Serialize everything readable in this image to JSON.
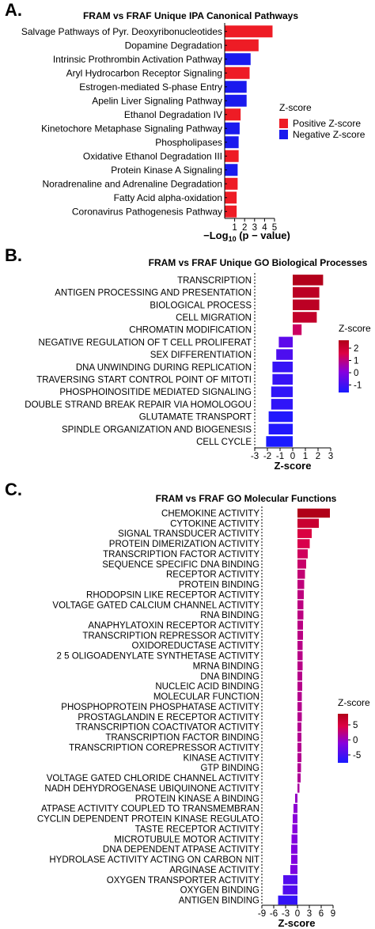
{
  "panels": {
    "a": {
      "letter": "A.",
      "title": "FRAM vs FRAF Unique IPA Canonical Pathways",
      "xlabel_prefix": "−Log",
      "xlabel_sub": "10",
      "xlabel_suffix": " (p − value)",
      "legend_title": "Z-score",
      "legend_items": [
        "Positive Z-score",
        "Negative Z-score"
      ]
    },
    "b": {
      "letter": "B.",
      "title": "FRAM vs FRAF Unique GO Biological Processes",
      "xlabel": "Z-score",
      "legend_title": "Z-score"
    },
    "c": {
      "letter": "C.",
      "title": "FRAM vs FRAF GO Molecular Functions",
      "xlabel": "Z-score",
      "legend_title": "Z-score"
    }
  },
  "colors": {
    "positive": "#ee1c25",
    "negative": "#1a1aee",
    "gradient": [
      "#1a1aff",
      "#8800dd",
      "#dd0044",
      "#b00018"
    ]
  },
  "chart_data": [
    {
      "type": "bar",
      "orientation": "horizontal",
      "title": "FRAM vs FRAF Unique IPA Canonical Pathways",
      "xlabel": "−Log10 (p − value)",
      "xlim": [
        0,
        5
      ],
      "xticks": [
        "1",
        "2",
        "3",
        "4",
        "5"
      ],
      "categories": [
        "Salvage Pathways of Pyr. Deoxyribonucleotides",
        "Dopamine Degradation",
        "Intrinsic Prothrombin Activation Pathway",
        "Aryl Hydrocarbon Receptor Signaling",
        "Estrogen-mediated S-phase Entry",
        "Apelin Liver Signaling Pathway",
        "Ethanol Degradation IV",
        "Kinetochore Metaphase Signaling Pathway",
        "Phospholipases",
        "Oxidative Ethanol Degradation III",
        "Protein Kinase A Signaling",
        "Noradrenaline and Adrenaline Degradation",
        "Fatty Acid alpha-oxidation",
        "Coronavirus Pathogenesis Pathway"
      ],
      "values": [
        4.8,
        3.4,
        2.6,
        2.5,
        2.2,
        2.2,
        1.6,
        1.5,
        1.4,
        1.4,
        1.3,
        1.3,
        1.2,
        1.2
      ],
      "zscore_sign": [
        "positive",
        "positive",
        "negative",
        "positive",
        "negative",
        "negative",
        "positive",
        "negative",
        "negative",
        "positive",
        "negative",
        "positive",
        "positive",
        "positive"
      ],
      "legend": [
        "Positive Z-score",
        "Negative Z-score"
      ],
      "legend_title": "Z-score",
      "legend_position": "right"
    },
    {
      "type": "bar",
      "orientation": "horizontal",
      "title": "FRAM vs FRAF Unique GO Biological Processes",
      "xlabel": "Z-score",
      "xlim": [
        -3,
        3
      ],
      "xticks": [
        "-3",
        "-2",
        "-1",
        "0",
        "1",
        "2",
        "3"
      ],
      "categories": [
        "TRANSCRIPTION",
        "ANTIGEN PROCESSING AND PRESENTATION",
        "BIOLOGICAL PROCESS",
        "CELL MIGRATION",
        "CHROMATIN MODIFICATION",
        "NEGATIVE REGULATION OF T CELL PROLIFERAT",
        "SEX DIFFERENTIATION",
        "DNA UNWINDING DURING REPLICATION",
        "TRAVERSING START CONTROL POINT OF MITOTI",
        "PHOSPHOINOSITIDE MEDIATED SIGNALING",
        "DOUBLE STRAND BREAK REPAIR VIA HOMOLOGOU",
        "GLUTAMATE TRANSPORT",
        "SPINDLE ORGANIZATION AND BIOGENESIS",
        "CELL CYCLE"
      ],
      "values": [
        2.4,
        2.1,
        2.1,
        1.9,
        0.7,
        -1.1,
        -1.3,
        -1.6,
        -1.6,
        -1.7,
        -1.7,
        -1.9,
        -1.9,
        -2.1
      ],
      "colorbar": {
        "title": "Z-score",
        "ticks": [
          "2",
          "1",
          "0",
          "-1"
        ],
        "range": [
          -2,
          2.5
        ]
      },
      "legend_position": "right"
    },
    {
      "type": "bar",
      "orientation": "horizontal",
      "title": "FRAM vs FRAF GO Molecular Functions",
      "xlabel": "Z-score",
      "xlim": [
        -9,
        9
      ],
      "xticks": [
        "-9",
        "-6",
        "-3",
        "0",
        "3",
        "6",
        "9"
      ],
      "categories": [
        "CHEMOKINE ACTIVITY",
        "CYTOKINE ACTIVITY",
        "SIGNAL TRANSDUCER ACTIVITY",
        "PROTEIN DIMERIZATION ACTIVITY",
        "TRANSCRIPTION FACTOR ACTIVITY",
        "SEQUENCE SPECIFIC DNA BINDING",
        "RECEPTOR ACTIVITY",
        "PROTEIN BINDING",
        "RHODOPSIN LIKE RECEPTOR ACTIVITY",
        "VOLTAGE GATED CALCIUM CHANNEL ACTIVITY",
        "RNA BINDING",
        "ANAPHYLATOXIN RECEPTOR ACTIVITY",
        "TRANSCRIPTION REPRESSOR ACTIVITY",
        "OXIDOREDUCTASE ACTIVITY",
        "2 5 OLIGOADENYLATE SYNTHETASE ACTIVITY",
        "MRNA BINDING",
        "DNA BINDING",
        "NUCLEIC ACID BINDING",
        "MOLECULAR FUNCTION",
        "PHOSPHOPROTEIN PHOSPHATASE ACTIVITY",
        "PROSTAGLANDIN E RECEPTOR ACTIVITY",
        "TRANSCRIPTION COACTIVATOR ACTIVITY",
        "TRANSCRIPTION FACTOR BINDING",
        "TRANSCRIPTION COREPRESSOR ACTIVITY",
        "KINASE ACTIVITY",
        "GTP BINDING",
        "VOLTAGE GATED CHLORIDE CHANNEL ACTIVITY",
        "NADH DEHYDROGENASE  UBIQUINONE  ACTIVITY",
        "PROTEIN KINASE A BINDING",
        "ATPASE ACTIVITY COUPLED TO TRANSMEMBRAN",
        "CYCLIN DEPENDENT PROTEIN KINASE REGULATO",
        "TASTE RECEPTOR ACTIVITY",
        "MICROTUBULE MOTOR ACTIVITY",
        "DNA DEPENDENT ATPASE ACTIVITY",
        "HYDROLASE ACTIVITY ACTING ON CARBON NIT",
        "ARGINASE ACTIVITY",
        "OXYGEN TRANSPORTER ACTIVITY",
        "OXYGEN BINDING",
        "ANTIGEN BINDING"
      ],
      "values": [
        8.2,
        5.4,
        3.6,
        3.1,
        2.6,
        2.2,
        1.9,
        1.7,
        1.6,
        1.5,
        1.5,
        1.4,
        1.4,
        1.3,
        1.3,
        1.3,
        1.2,
        1.2,
        1.1,
        1.1,
        1.1,
        1.0,
        1.0,
        1.0,
        1.0,
        0.9,
        0.8,
        0.5,
        -0.6,
        -1.0,
        -1.2,
        -1.3,
        -1.5,
        -1.6,
        -1.6,
        -1.8,
        -3.6,
        -3.7,
        -4.9
      ],
      "colorbar": {
        "title": "Z-score",
        "ticks": [
          "5",
          "0",
          "-5"
        ],
        "range": [
          -6,
          8
        ]
      },
      "legend_position": "right"
    }
  ]
}
